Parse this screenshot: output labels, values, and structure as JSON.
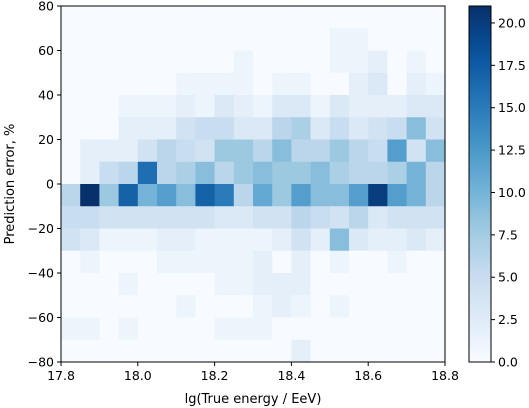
{
  "chart_data": {
    "type": "heatmap",
    "xlabel": "lg(True energy / EeV)",
    "ylabel": "Prediction error, %",
    "xlim": [
      17.8,
      18.8
    ],
    "ylim": [
      -80,
      80
    ],
    "x_bins": 20,
    "y_bins": 16,
    "x_ticks": [
      "17.8",
      "18.0",
      "18.2",
      "18.4",
      "18.6",
      "18.8"
    ],
    "y_ticks": [
      "−80",
      "−60",
      "−40",
      "−20",
      "0",
      "20",
      "40",
      "60",
      "80"
    ],
    "colorbar": {
      "min": 0,
      "max": 21,
      "colormap": "Blues",
      "ticks": [
        "0.0",
        "2.5",
        "5.0",
        "7.5",
        "10.0",
        "12.5",
        "15.0",
        "17.5",
        "20.0"
      ]
    },
    "colors": {
      "low": "#f7fbff",
      "high": "#08306b"
    },
    "counts": [
      [
        0,
        0,
        0,
        0,
        0,
        0,
        0,
        0,
        0,
        0,
        0,
        0,
        0,
        0,
        0,
        0,
        0,
        0,
        0,
        0
      ],
      [
        0,
        0,
        0,
        0,
        0,
        0,
        0,
        0,
        0,
        0,
        0,
        0,
        0,
        0,
        1,
        1,
        0,
        0,
        0,
        0
      ],
      [
        0,
        0,
        0,
        0,
        0,
        0,
        0,
        0,
        0,
        1,
        0,
        0,
        0,
        0,
        1,
        1,
        2,
        0,
        1,
        0
      ],
      [
        0,
        0,
        0,
        0,
        0,
        0,
        1,
        1,
        1,
        1,
        0,
        1,
        1,
        0,
        0,
        2,
        3,
        0,
        2,
        1
      ],
      [
        0,
        0,
        0,
        1,
        1,
        1,
        2,
        1,
        3,
        2,
        1,
        3,
        3,
        1,
        3,
        2,
        2,
        2,
        3,
        3
      ],
      [
        0,
        0,
        0,
        2,
        2,
        2,
        4,
        5,
        5,
        3,
        3,
        6,
        7,
        3,
        5,
        3,
        4,
        5,
        9,
        4
      ],
      [
        0,
        2,
        2,
        2,
        4,
        6,
        5,
        4,
        8,
        8,
        6,
        9,
        6,
        6,
        8,
        6,
        5,
        12,
        4,
        9
      ],
      [
        0,
        2,
        5,
        6,
        16,
        6,
        7,
        9,
        6,
        8,
        9,
        8,
        8,
        9,
        7,
        6,
        6,
        7,
        10,
        6
      ],
      [
        6,
        21,
        8,
        17,
        10,
        12,
        9,
        17,
        15,
        6,
        11,
        8,
        12,
        9,
        9,
        12,
        20,
        12,
        10,
        6
      ],
      [
        5,
        5,
        4,
        4,
        4,
        4,
        4,
        4,
        3,
        3,
        4,
        4,
        6,
        5,
        4,
        6,
        3,
        4,
        4,
        4
      ],
      [
        4,
        3,
        1,
        1,
        1,
        2,
        2,
        1,
        1,
        1,
        1,
        2,
        4,
        2,
        9,
        3,
        2,
        2,
        3,
        2
      ],
      [
        0,
        1,
        0,
        0,
        0,
        1,
        1,
        1,
        1,
        1,
        2,
        0,
        2,
        0,
        1,
        0,
        0,
        1,
        0,
        0
      ],
      [
        0,
        0,
        0,
        1,
        0,
        0,
        0,
        0,
        1,
        1,
        2,
        2,
        2,
        0,
        0,
        0,
        0,
        0,
        0,
        0
      ],
      [
        0,
        0,
        0,
        0,
        0,
        0,
        1,
        0,
        0,
        0,
        1,
        2,
        1,
        0,
        1,
        0,
        0,
        0,
        0,
        0
      ],
      [
        1,
        1,
        0,
        1,
        0,
        0,
        0,
        0,
        1,
        1,
        1,
        0,
        0,
        0,
        0,
        0,
        0,
        0,
        0,
        0
      ],
      [
        0,
        0,
        0,
        0,
        0,
        0,
        0,
        0,
        0,
        0,
        0,
        0,
        2,
        0,
        0,
        0,
        0,
        0,
        0,
        0
      ]
    ]
  }
}
